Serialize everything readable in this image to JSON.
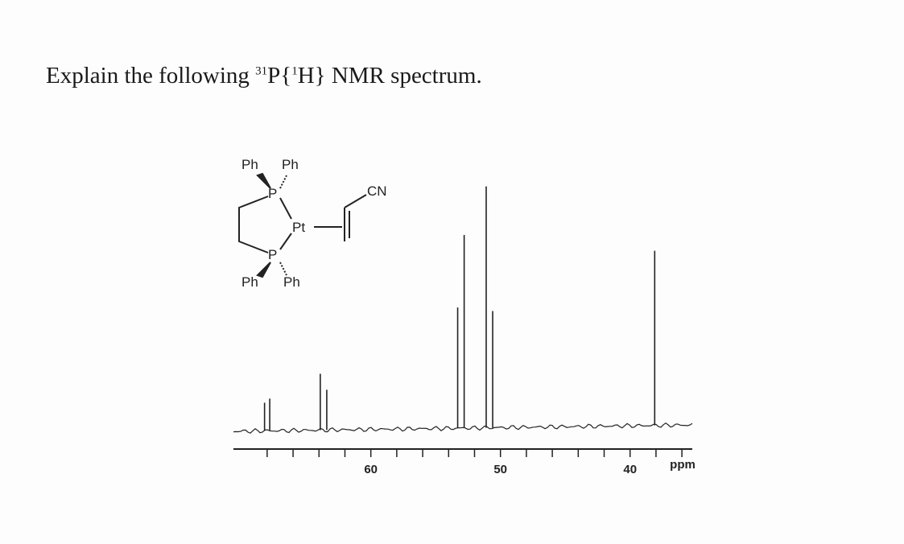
{
  "question": {
    "parts": [
      "Explain the following ",
      "31",
      "P{",
      "1",
      "H} NMR spectrum."
    ]
  },
  "structure": {
    "labels": [
      "Ph",
      "Ph",
      "P",
      "Pt",
      "CN",
      "P",
      "Ph",
      "Ph"
    ]
  },
  "chart_data": {
    "type": "spectrum",
    "x_label": "ppm",
    "xlim": [
      70.6,
      35.2
    ],
    "xticks": [
      60,
      50,
      40
    ],
    "xminor_ticks": [
      68,
      66,
      64,
      62,
      58,
      56,
      54,
      52,
      48,
      46,
      44,
      42,
      38,
      36
    ],
    "peaks_ppm": [
      68.2,
      67.8,
      63.9,
      63.4,
      53.3,
      52.8,
      51.1,
      50.6,
      38.1
    ],
    "intensities": [
      35,
      40,
      70,
      50,
      150,
      240,
      300,
      145,
      217
    ],
    "ylim": [
      0,
      300
    ],
    "color": "#222222"
  }
}
